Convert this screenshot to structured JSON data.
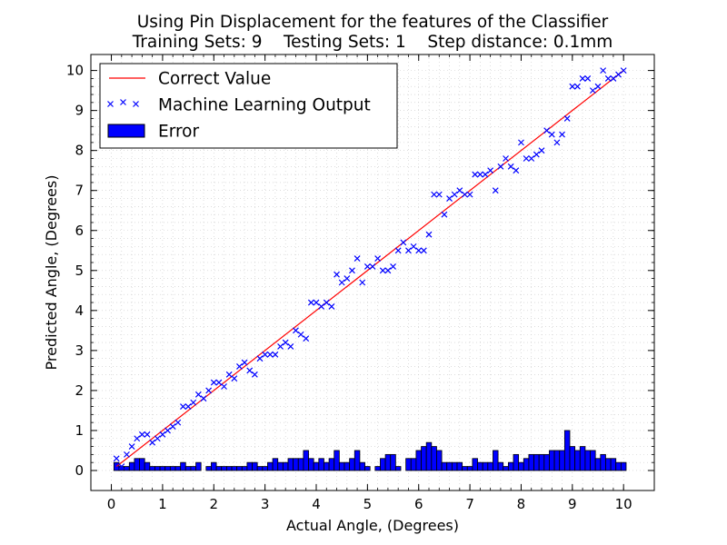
{
  "chart_data": {
    "type": "scatter",
    "title": "Using Pin Displacement for the features of the Classifier",
    "subtitle": "Training Sets: 9    Testing Sets: 1    Step distance: 0.1mm",
    "xlabel": "Actual Angle, (Degrees)",
    "ylabel": "Predicted Angle, (Degrees)",
    "xlim": [
      -0.4,
      10.6
    ],
    "ylim": [
      -0.5,
      10.4
    ],
    "xticks": [
      0,
      1,
      2,
      3,
      4,
      5,
      6,
      7,
      8,
      9,
      10
    ],
    "yticks": [
      0,
      1,
      2,
      3,
      4,
      5,
      6,
      7,
      8,
      9,
      10
    ],
    "grid": true,
    "legend_position": "top-left",
    "colors": {
      "correct": "#ff0000",
      "ml": "#0000ff",
      "error_fill": "#0000ff",
      "error_edge": "#000000"
    },
    "legend": [
      "Correct Value",
      "Machine Learning Output",
      "Error"
    ],
    "series": [
      {
        "name": "Correct Value",
        "kind": "line",
        "x": [
          0.1,
          10.0
        ],
        "y": [
          0.1,
          10.0
        ]
      },
      {
        "name": "Machine Learning Output",
        "kind": "scatter",
        "marker": "x",
        "x": [
          0.1,
          0.2,
          0.3,
          0.4,
          0.5,
          0.6,
          0.7,
          0.8,
          0.9,
          1.0,
          1.1,
          1.2,
          1.3,
          1.4,
          1.5,
          1.6,
          1.7,
          1.8,
          1.9,
          2.0,
          2.1,
          2.2,
          2.3,
          2.4,
          2.5,
          2.6,
          2.7,
          2.8,
          2.9,
          3.0,
          3.1,
          3.2,
          3.3,
          3.4,
          3.5,
          3.6,
          3.7,
          3.8,
          3.9,
          4.0,
          4.1,
          4.2,
          4.3,
          4.4,
          4.5,
          4.6,
          4.7,
          4.8,
          4.9,
          5.0,
          5.1,
          5.2,
          5.3,
          5.4,
          5.5,
          5.6,
          5.7,
          5.8,
          5.9,
          6.0,
          6.1,
          6.2,
          6.3,
          6.4,
          6.5,
          6.6,
          6.7,
          6.8,
          6.9,
          7.0,
          7.1,
          7.2,
          7.3,
          7.4,
          7.5,
          7.6,
          7.7,
          7.8,
          7.9,
          8.0,
          8.1,
          8.2,
          8.3,
          8.4,
          8.5,
          8.6,
          8.7,
          8.8,
          8.9,
          9.0,
          9.1,
          9.2,
          9.3,
          9.4,
          9.5,
          9.6,
          9.7,
          9.8,
          9.9,
          10.0
        ],
        "y": [
          0.3,
          0.1,
          0.4,
          0.6,
          0.8,
          0.9,
          0.9,
          0.7,
          0.8,
          0.9,
          1.0,
          1.1,
          1.2,
          1.6,
          1.6,
          1.7,
          1.9,
          1.8,
          2.0,
          2.2,
          2.2,
          2.1,
          2.4,
          2.3,
          2.6,
          2.7,
          2.5,
          2.4,
          2.8,
          2.9,
          2.9,
          2.9,
          3.1,
          3.2,
          3.1,
          3.5,
          3.4,
          3.3,
          4.2,
          4.2,
          4.1,
          4.2,
          4.1,
          4.9,
          4.7,
          4.8,
          5.0,
          5.3,
          4.7,
          5.1,
          5.1,
          5.3,
          5.0,
          5.0,
          5.1,
          5.5,
          5.7,
          5.5,
          5.6,
          5.5,
          5.5,
          5.9,
          6.9,
          6.9,
          6.4,
          6.8,
          6.9,
          7.0,
          6.9,
          6.9,
          7.4,
          7.4,
          7.4,
          7.5,
          7.0,
          7.6,
          7.8,
          7.6,
          7.5,
          8.2,
          7.8,
          7.8,
          7.9,
          8.0,
          8.5,
          8.4,
          8.2,
          8.4,
          8.8,
          9.6,
          9.6,
          9.8,
          9.8,
          9.5,
          9.6,
          10.0,
          9.8,
          9.8,
          9.9,
          10.0
        ]
      },
      {
        "name": "Error",
        "kind": "bar",
        "x": [
          0.1,
          0.2,
          0.3,
          0.4,
          0.5,
          0.6,
          0.7,
          0.8,
          0.9,
          1.0,
          1.1,
          1.2,
          1.3,
          1.4,
          1.5,
          1.6,
          1.7,
          1.8,
          1.9,
          2.0,
          2.1,
          2.2,
          2.3,
          2.4,
          2.5,
          2.6,
          2.7,
          2.8,
          2.9,
          3.0,
          3.1,
          3.2,
          3.3,
          3.4,
          3.5,
          3.6,
          3.7,
          3.8,
          3.9,
          4.0,
          4.1,
          4.2,
          4.3,
          4.4,
          4.5,
          4.6,
          4.7,
          4.8,
          4.9,
          5.0,
          5.1,
          5.2,
          5.3,
          5.4,
          5.5,
          5.6,
          5.7,
          5.8,
          5.9,
          6.0,
          6.1,
          6.2,
          6.3,
          6.4,
          6.5,
          6.6,
          6.7,
          6.8,
          6.9,
          7.0,
          7.1,
          7.2,
          7.3,
          7.4,
          7.5,
          7.6,
          7.7,
          7.8,
          7.9,
          8.0,
          8.1,
          8.2,
          8.3,
          8.4,
          8.5,
          8.6,
          8.7,
          8.8,
          8.9,
          9.0,
          9.1,
          9.2,
          9.3,
          9.4,
          9.5,
          9.6,
          9.7,
          9.8,
          9.9,
          10.0
        ],
        "values": [
          0.2,
          0.1,
          0.1,
          0.2,
          0.3,
          0.3,
          0.2,
          0.1,
          0.1,
          0.1,
          0.1,
          0.1,
          0.1,
          0.2,
          0.1,
          0.1,
          0.2,
          0.0,
          0.1,
          0.2,
          0.1,
          0.1,
          0.1,
          0.1,
          0.1,
          0.1,
          0.2,
          0.2,
          0.1,
          0.1,
          0.2,
          0.3,
          0.2,
          0.2,
          0.3,
          0.3,
          0.3,
          0.5,
          0.3,
          0.2,
          0.3,
          0.2,
          0.3,
          0.5,
          0.2,
          0.2,
          0.3,
          0.5,
          0.2,
          0.1,
          0.0,
          0.1,
          0.3,
          0.4,
          0.4,
          0.1,
          0.0,
          0.3,
          0.3,
          0.5,
          0.6,
          0.7,
          0.6,
          0.5,
          0.2,
          0.2,
          0.2,
          0.2,
          0.1,
          0.1,
          0.3,
          0.2,
          0.2,
          0.2,
          0.5,
          0.2,
          0.1,
          0.2,
          0.4,
          0.2,
          0.3,
          0.4,
          0.4,
          0.4,
          0.4,
          0.5,
          0.5,
          0.5,
          1.0,
          0.6,
          0.5,
          0.6,
          0.5,
          0.5,
          0.3,
          0.4,
          0.3,
          0.3,
          0.2,
          0.2
        ]
      }
    ]
  }
}
